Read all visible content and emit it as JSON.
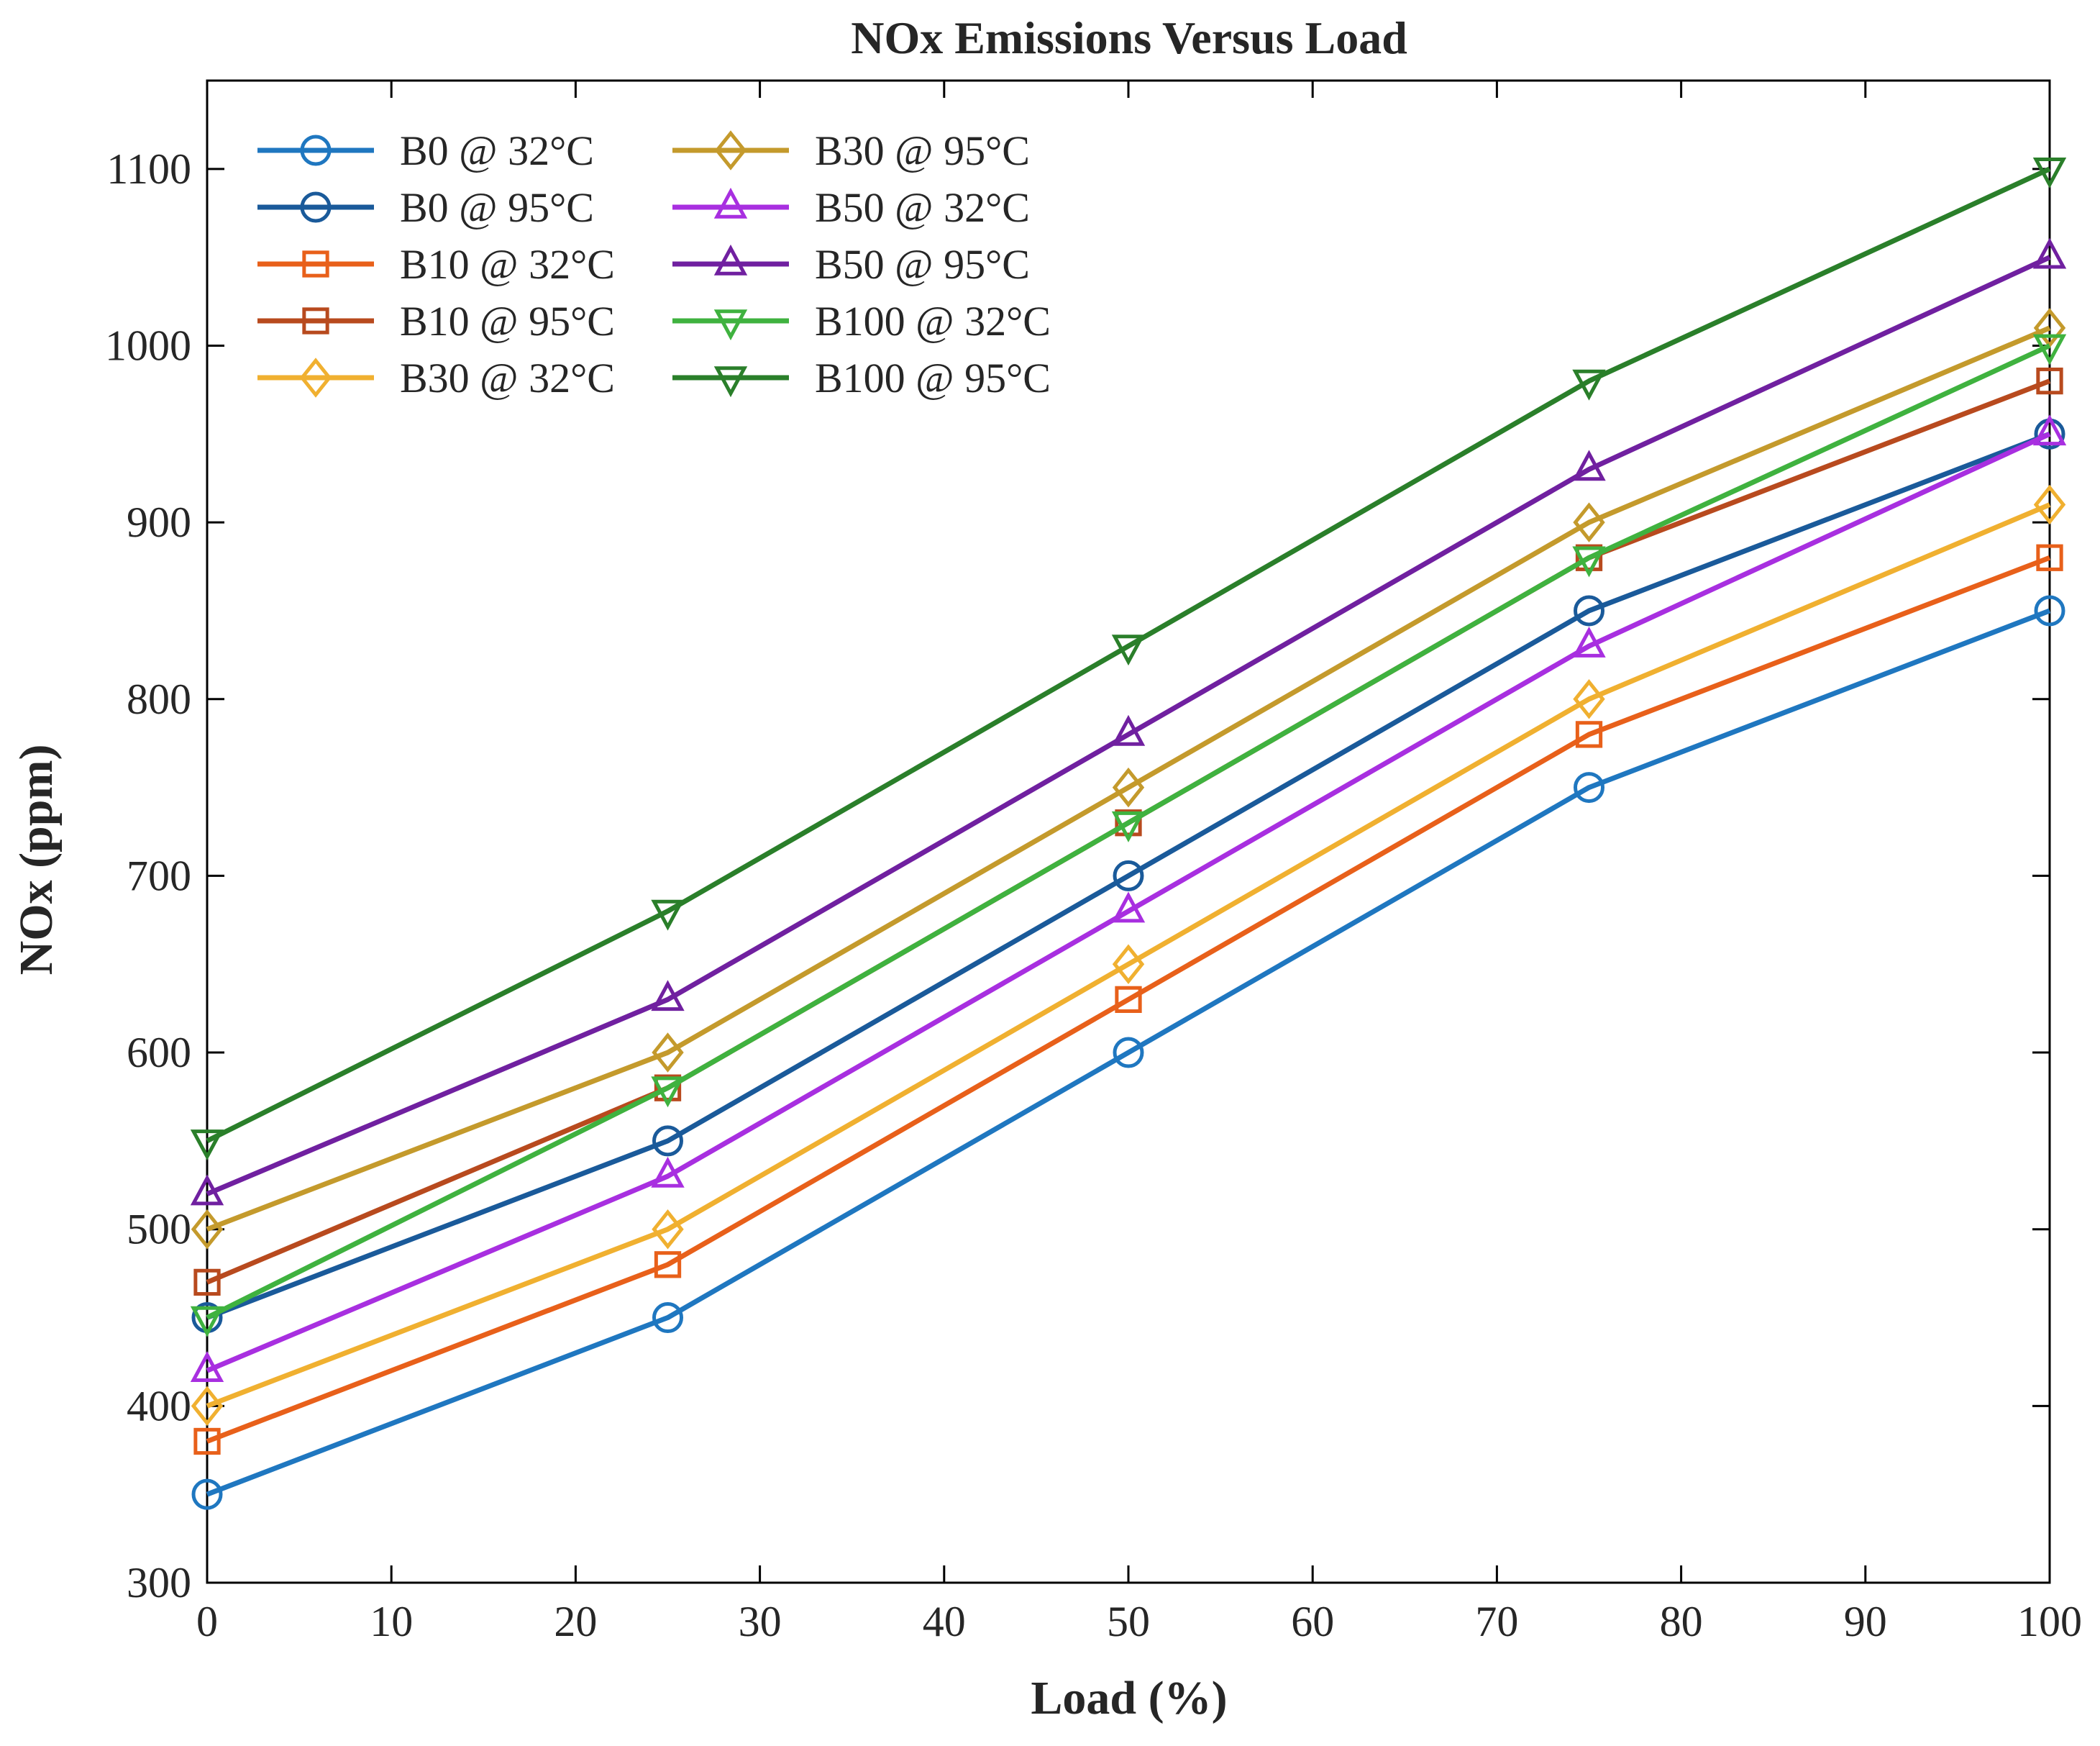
{
  "chart_data": {
    "type": "line",
    "title": "NOx Emissions Versus Load",
    "xlabel": "Load (%)",
    "ylabel": "NOx (ppm)",
    "xlim": [
      0,
      100
    ],
    "ylim": [
      300,
      1150
    ],
    "xticks": [
      0,
      10,
      20,
      30,
      40,
      50,
      60,
      70,
      80,
      90,
      100
    ],
    "yticks": [
      300,
      400,
      500,
      600,
      700,
      800,
      900,
      1000,
      1100
    ],
    "x": [
      0,
      25,
      50,
      75,
      100
    ],
    "grid": false,
    "legend_position": "top-left",
    "series": [
      {
        "name": "B0 @ 32°C",
        "color": "#1f77c0",
        "marker": "circle",
        "values": [
          350,
          450,
          600,
          750,
          850
        ]
      },
      {
        "name": "B0 @ 95°C",
        "color": "#1a5a9a",
        "marker": "circle",
        "values": [
          450,
          550,
          700,
          850,
          950
        ]
      },
      {
        "name": "B10 @ 32°C",
        "color": "#e8601a",
        "marker": "square",
        "values": [
          380,
          480,
          630,
          780,
          880
        ]
      },
      {
        "name": "B10 @ 95°C",
        "color": "#b84a1e",
        "marker": "square",
        "values": [
          470,
          580,
          730,
          880,
          980
        ]
      },
      {
        "name": "B30 @ 32°C",
        "color": "#f0b030",
        "marker": "diamond",
        "values": [
          400,
          500,
          650,
          800,
          910
        ]
      },
      {
        "name": "B30 @ 95°C",
        "color": "#c49a2c",
        "marker": "diamond",
        "values": [
          500,
          600,
          750,
          900,
          1010
        ]
      },
      {
        "name": "B50 @ 32°C",
        "color": "#a82fe0",
        "marker": "triangle-up",
        "values": [
          420,
          530,
          680,
          830,
          950
        ]
      },
      {
        "name": "B50 @ 95°C",
        "color": "#7020a0",
        "marker": "triangle-up",
        "values": [
          520,
          630,
          780,
          930,
          1050
        ]
      },
      {
        "name": "B100 @ 32°C",
        "color": "#3fb23f",
        "marker": "triangle-down",
        "values": [
          450,
          580,
          730,
          880,
          1000
        ]
      },
      {
        "name": "B100 @ 95°C",
        "color": "#2a7f2a",
        "marker": "triangle-down",
        "values": [
          550,
          680,
          830,
          980,
          1100
        ]
      }
    ]
  }
}
